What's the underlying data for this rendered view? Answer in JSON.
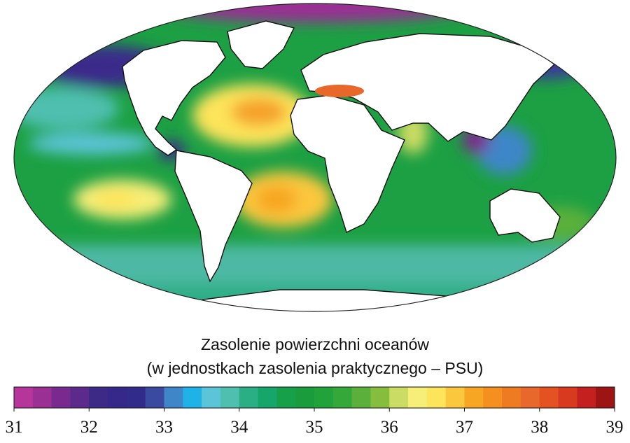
{
  "legend": {
    "title_lines": [
      "Zasolenie powierzchni oceanów",
      "(w jednostkach zasolenia praktycznego – PSU)"
    ],
    "colorbar": {
      "range": [
        31,
        39
      ],
      "ticks": [
        31,
        32,
        33,
        34,
        35,
        36,
        37,
        38,
        39
      ],
      "colors": [
        "#b5359b",
        "#9a2f94",
        "#7a2a8e",
        "#5c2a8a",
        "#3d2a86",
        "#35288a",
        "#312c8c",
        "#3a4aa0",
        "#3e86c8",
        "#1fb2e6",
        "#5bc4d8",
        "#4fbfb0",
        "#2aae84",
        "#16a56b",
        "#16a04a",
        "#1a9c3c",
        "#22a23a",
        "#35a83a",
        "#5ab03a",
        "#86bd3c",
        "#cbdc64",
        "#f6ee78",
        "#fde45a",
        "#fbc73c",
        "#f7a624",
        "#f48f20",
        "#ee7a22",
        "#e8672a",
        "#e45222",
        "#d83a20",
        "#c42020",
        "#9e1414"
      ]
    }
  }
}
